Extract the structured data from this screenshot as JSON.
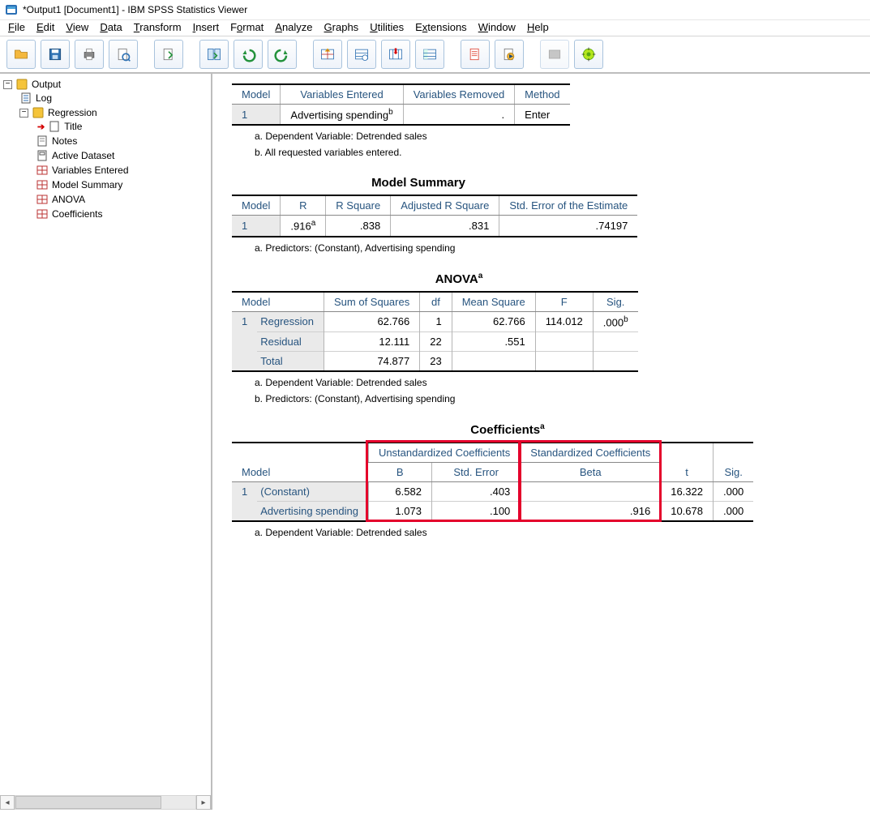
{
  "window": {
    "title": "*Output1 [Document1] - IBM SPSS Statistics Viewer"
  },
  "menus": {
    "file": "File",
    "edit": "Edit",
    "view": "View",
    "data": "Data",
    "transform": "Transform",
    "insert": "Insert",
    "format": "Format",
    "analyze": "Analyze",
    "graphs": "Graphs",
    "utilities": "Utilities",
    "extensions": "Extensions",
    "window": "Window",
    "help": "Help"
  },
  "outline": {
    "root": "Output",
    "log": "Log",
    "regression": "Regression",
    "children": {
      "title": "Title",
      "notes": "Notes",
      "active": "Active Dataset",
      "varentered": "Variables Entered",
      "modelsummary": "Model Summary",
      "anova": "ANOVA",
      "coefficients": "Coefficients"
    }
  },
  "variablesEntered": {
    "headers": {
      "model": "Model",
      "entered": "Variables Entered",
      "removed": "Variables Removed",
      "method": "Method"
    },
    "row": {
      "model": "1",
      "entered": "Advertising spending",
      "entered_sup": "b",
      "removed": ".",
      "method": "Enter"
    },
    "notes": {
      "a": "a. Dependent Variable: Detrended sales",
      "b": "b. All requested variables entered."
    }
  },
  "modelSummary": {
    "title": "Model Summary",
    "headers": {
      "model": "Model",
      "r": "R",
      "rsq": "R Square",
      "adjrsq": "Adjusted R Square",
      "stderr": "Std. Error of the Estimate"
    },
    "row": {
      "model": "1",
      "r": ".916",
      "r_sup": "a",
      "rsq": ".838",
      "adjrsq": ".831",
      "stderr": ".74197"
    },
    "note_a": "a. Predictors: (Constant), Advertising spending"
  },
  "anova": {
    "title": "ANOVA",
    "title_sup": "a",
    "headers": {
      "model": "Model",
      "ss": "Sum of Squares",
      "df": "df",
      "ms": "Mean Square",
      "f": "F",
      "sig": "Sig."
    },
    "rows": {
      "regression": {
        "label": "Regression",
        "ss": "62.766",
        "df": "1",
        "ms": "62.766",
        "f": "114.012",
        "sig": ".000",
        "sig_sup": "b"
      },
      "residual": {
        "label": "Residual",
        "ss": "12.111",
        "df": "22",
        "ms": ".551",
        "f": "",
        "sig": ""
      },
      "total": {
        "label": "Total",
        "ss": "74.877",
        "df": "23",
        "ms": "",
        "f": "",
        "sig": ""
      }
    },
    "row_model": "1",
    "note_a": "a. Dependent Variable: Detrended sales",
    "note_b": "b. Predictors: (Constant), Advertising spending"
  },
  "coefficients": {
    "title": "Coefficients",
    "title_sup": "a",
    "group_headers": {
      "unstd": "Unstandardized Coefficients",
      "std": "Standardized Coefficients"
    },
    "headers": {
      "model": "Model",
      "b": "B",
      "stderr": "Std. Error",
      "beta": "Beta",
      "t": "t",
      "sig": "Sig."
    },
    "row_model": "1",
    "rows": {
      "const": {
        "label": "(Constant)",
        "b": "6.582",
        "stderr": ".403",
        "beta": "",
        "t": "16.322",
        "sig": ".000"
      },
      "adv": {
        "label": "Advertising spending",
        "b": "1.073",
        "stderr": ".100",
        "beta": ".916",
        "t": "10.678",
        "sig": ".000"
      }
    },
    "note_a": "a. Dependent Variable: Detrended sales",
    "highlight_colors": {
      "border": "#e4002b"
    }
  },
  "colors": {
    "header_text": "#27547f",
    "rowhdr_bg": "#eaeaea",
    "grid": "#b5b5b5",
    "table_border": "#000000"
  }
}
